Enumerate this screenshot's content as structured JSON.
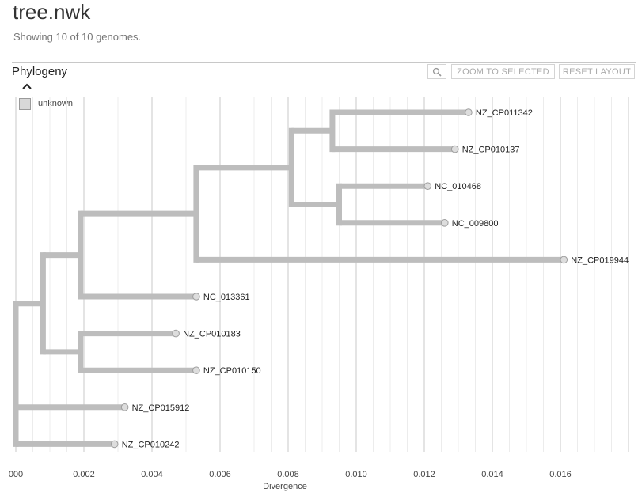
{
  "header": {
    "title": "tree.nwk",
    "subtitle": "Showing 10 of 10 genomes."
  },
  "panel": {
    "title": "Phylogeny",
    "collapse_icon": "chevron-up-icon",
    "toolbar": {
      "search_icon": "magnifier-icon",
      "zoom_label": "ZOOM TO SELECTED",
      "reset_label": "RESET LAYOUT"
    }
  },
  "legend": {
    "items": [
      {
        "label": "unknown",
        "color": "#d8d8d8"
      }
    ]
  },
  "colors": {
    "branch": "#bdbdbd",
    "gridline": "#ececec",
    "node_fill": "#dddddd",
    "node_stroke": "#9e9e9e"
  },
  "axis": {
    "title": "Divergence",
    "min": 0,
    "max": 0.0182,
    "ticks": [
      {
        "value": 0.0,
        "label": "000"
      },
      {
        "value": 0.002,
        "label": "0.002"
      },
      {
        "value": 0.004,
        "label": "0.004"
      },
      {
        "value": 0.006,
        "label": "0.006"
      },
      {
        "value": 0.008,
        "label": "0.008"
      },
      {
        "value": 0.01,
        "label": "0.010"
      },
      {
        "value": 0.012,
        "label": "0.012"
      },
      {
        "value": 0.014,
        "label": "0.014"
      },
      {
        "value": 0.016,
        "label": "0.016"
      }
    ],
    "minor_step": 0.0005
  },
  "tree": {
    "name": "root",
    "x": 0.0,
    "children": [
      {
        "name": "n_a",
        "x": 0.0008,
        "children": [
          {
            "name": "n_b",
            "x": 0.0019,
            "children": [
              {
                "name": "n_c",
                "x": 0.0053,
                "children": [
                  {
                    "name": "n_d",
                    "x": 0.0081,
                    "children": [
                      {
                        "name": "n_e",
                        "x": 0.0093,
                        "children": [
                          {
                            "name": "NZ_CP011342",
                            "x": 0.0133
                          },
                          {
                            "name": "NZ_CP010137",
                            "x": 0.0129
                          }
                        ]
                      },
                      {
                        "name": "n_f",
                        "x": 0.0095,
                        "children": [
                          {
                            "name": "NC_010468",
                            "x": 0.0121
                          },
                          {
                            "name": "NC_009800",
                            "x": 0.0126
                          }
                        ]
                      }
                    ]
                  },
                  {
                    "name": "NZ_CP019944",
                    "x": 0.0161
                  }
                ]
              },
              {
                "name": "NC_013361",
                "x": 0.0053
              }
            ]
          },
          {
            "name": "n_g",
            "x": 0.0019,
            "children": [
              {
                "name": "NZ_CP010183",
                "x": 0.0047
              },
              {
                "name": "NZ_CP010150",
                "x": 0.0053
              }
            ]
          }
        ]
      },
      {
        "name": "NZ_CP015912",
        "x": 0.0032
      },
      {
        "name": "NZ_CP010242",
        "x": 0.0029
      }
    ]
  }
}
